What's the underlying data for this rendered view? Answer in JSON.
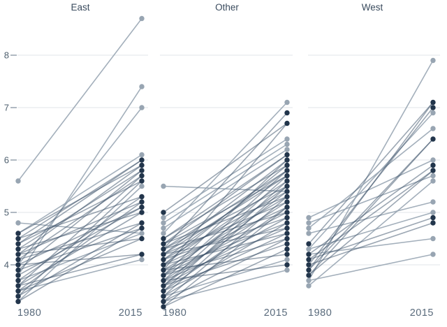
{
  "chart_data": {
    "type": "line",
    "variant": "slopegraph",
    "title": "",
    "x_categories": [
      "1980",
      "2015"
    ],
    "y_ticks": [
      4,
      5,
      6,
      7,
      8
    ],
    "ylim": [
      3.1,
      8.8
    ],
    "grid": "horizontal",
    "legend": "none",
    "line_format": [
      "value_1980",
      "value_2015",
      "group"
    ],
    "groups": {
      "light": {
        "dot_color": "#98a5b2",
        "line_color": "#93a1af"
      },
      "dark": {
        "dot_color": "#22354b",
        "line_color": "#3a5068"
      }
    },
    "colors": {
      "background": "#ffffff",
      "gridline": "#e2e6e9",
      "tick_dash": "#8593a0",
      "tick_label": "#4e5f6e",
      "axis_label": "#5a6b7c",
      "panel_title": "#3a4b5e"
    },
    "facets": [
      {
        "title": "East",
        "lines": [
          [
            5.6,
            8.7,
            "light"
          ],
          [
            3.8,
            7.4,
            "light"
          ],
          [
            4.0,
            7.0,
            "light"
          ],
          [
            4.6,
            6.1,
            "light"
          ],
          [
            4.8,
            4.6,
            "light"
          ],
          [
            3.3,
            5.5,
            "light"
          ],
          [
            3.5,
            4.1,
            "light"
          ],
          [
            3.7,
            4.6,
            "light"
          ],
          [
            4.5,
            6.0,
            "dark"
          ],
          [
            4.4,
            6.0,
            "dark"
          ],
          [
            4.6,
            5.9,
            "dark"
          ],
          [
            4.2,
            5.9,
            "dark"
          ],
          [
            4.3,
            5.8,
            "dark"
          ],
          [
            3.9,
            5.8,
            "dark"
          ],
          [
            4.1,
            5.7,
            "dark"
          ],
          [
            3.6,
            5.7,
            "dark"
          ],
          [
            4.4,
            5.6,
            "dark"
          ],
          [
            3.4,
            5.6,
            "dark"
          ],
          [
            4.5,
            5.3,
            "dark"
          ],
          [
            3.7,
            5.3,
            "dark"
          ],
          [
            4.2,
            5.2,
            "dark"
          ],
          [
            3.5,
            5.2,
            "dark"
          ],
          [
            4.0,
            5.1,
            "dark"
          ],
          [
            3.8,
            5.1,
            "dark"
          ],
          [
            4.3,
            5.0,
            "dark"
          ],
          [
            3.6,
            5.0,
            "dark"
          ],
          [
            4.1,
            4.8,
            "dark"
          ],
          [
            3.4,
            4.8,
            "dark"
          ],
          [
            3.9,
            4.7,
            "dark"
          ],
          [
            3.3,
            4.7,
            "dark"
          ],
          [
            4.2,
            4.5,
            "dark"
          ],
          [
            3.5,
            4.5,
            "dark"
          ],
          [
            4.0,
            4.2,
            "dark"
          ],
          [
            3.6,
            4.2,
            "dark"
          ]
        ]
      },
      {
        "title": "Other",
        "lines": [
          [
            5.5,
            5.4,
            "light"
          ],
          [
            4.6,
            7.1,
            "light"
          ],
          [
            4.9,
            6.4,
            "light"
          ],
          [
            4.8,
            6.3,
            "light"
          ],
          [
            4.7,
            6.2,
            "light"
          ],
          [
            3.4,
            4.1,
            "light"
          ],
          [
            3.3,
            3.9,
            "light"
          ],
          [
            4.3,
            6.9,
            "dark"
          ],
          [
            3.9,
            6.7,
            "dark"
          ],
          [
            5.0,
            6.7,
            "dark"
          ],
          [
            4.5,
            6.1,
            "dark"
          ],
          [
            4.4,
            6.1,
            "dark"
          ],
          [
            4.2,
            6.0,
            "dark"
          ],
          [
            3.8,
            6.0,
            "dark"
          ],
          [
            4.5,
            5.9,
            "dark"
          ],
          [
            4.0,
            5.9,
            "dark"
          ],
          [
            4.3,
            5.8,
            "dark"
          ],
          [
            3.7,
            5.8,
            "dark"
          ],
          [
            4.1,
            5.8,
            "dark"
          ],
          [
            4.4,
            5.7,
            "dark"
          ],
          [
            3.6,
            5.7,
            "dark"
          ],
          [
            4.2,
            5.7,
            "dark"
          ],
          [
            4.0,
            5.6,
            "dark"
          ],
          [
            3.5,
            5.6,
            "dark"
          ],
          [
            4.3,
            5.5,
            "dark"
          ],
          [
            3.8,
            5.5,
            "dark"
          ],
          [
            3.4,
            5.5,
            "dark"
          ],
          [
            4.1,
            5.4,
            "dark"
          ],
          [
            3.6,
            5.4,
            "dark"
          ],
          [
            4.4,
            5.3,
            "dark"
          ],
          [
            3.9,
            5.3,
            "dark"
          ],
          [
            3.3,
            5.3,
            "dark"
          ],
          [
            4.2,
            5.2,
            "dark"
          ],
          [
            3.7,
            5.2,
            "dark"
          ],
          [
            4.0,
            5.1,
            "dark"
          ],
          [
            3.5,
            5.1,
            "dark"
          ],
          [
            3.2,
            5.1,
            "dark"
          ],
          [
            4.3,
            5.0,
            "dark"
          ],
          [
            3.8,
            5.0,
            "dark"
          ],
          [
            4.1,
            4.9,
            "dark"
          ],
          [
            3.6,
            4.9,
            "dark"
          ],
          [
            3.9,
            4.8,
            "dark"
          ],
          [
            3.4,
            4.8,
            "dark"
          ],
          [
            4.2,
            4.7,
            "dark"
          ],
          [
            3.7,
            4.7,
            "dark"
          ],
          [
            4.0,
            4.6,
            "dark"
          ],
          [
            3.5,
            4.6,
            "dark"
          ],
          [
            3.8,
            4.5,
            "dark"
          ],
          [
            3.3,
            4.5,
            "dark"
          ],
          [
            3.6,
            4.4,
            "dark"
          ],
          [
            3.2,
            4.3,
            "dark"
          ],
          [
            3.9,
            4.2,
            "dark"
          ],
          [
            3.7,
            4.0,
            "dark"
          ]
        ]
      },
      {
        "title": "West",
        "lines": [
          [
            3.7,
            7.9,
            "light"
          ],
          [
            4.3,
            6.9,
            "light"
          ],
          [
            4.7,
            6.6,
            "light"
          ],
          [
            4.9,
            6.0,
            "light"
          ],
          [
            4.8,
            5.7,
            "light"
          ],
          [
            3.6,
            5.6,
            "light"
          ],
          [
            4.6,
            5.2,
            "light"
          ],
          [
            4.3,
            5.0,
            "light"
          ],
          [
            4.2,
            4.5,
            "light"
          ],
          [
            3.7,
            4.2,
            "light"
          ],
          [
            4.4,
            7.1,
            "dark"
          ],
          [
            3.9,
            7.1,
            "dark"
          ],
          [
            4.0,
            7.0,
            "dark"
          ],
          [
            3.8,
            6.4,
            "dark"
          ],
          [
            4.2,
            5.9,
            "dark"
          ],
          [
            4.1,
            5.8,
            "dark"
          ],
          [
            3.8,
            5.8,
            "dark"
          ],
          [
            4.1,
            4.9,
            "dark"
          ],
          [
            4.0,
            4.8,
            "dark"
          ],
          [
            3.9,
            6.4,
            "dark"
          ]
        ]
      }
    ]
  }
}
